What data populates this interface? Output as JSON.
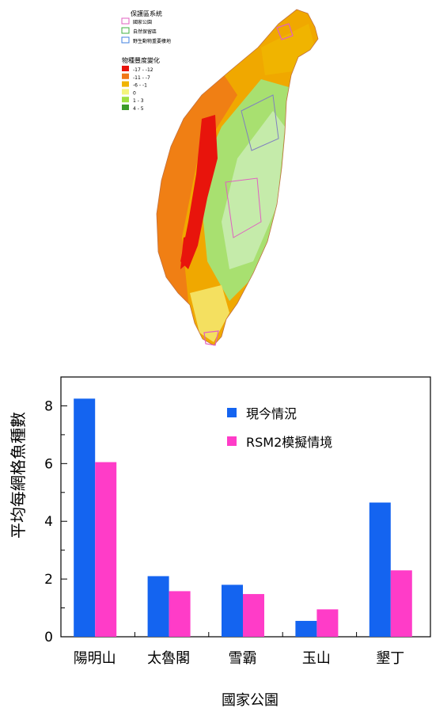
{
  "map": {
    "legend_protected_title": "保護區系統",
    "protected_items": [
      {
        "label": "國家公園",
        "color": "#e060c0"
      },
      {
        "label": "自然保留區",
        "color": "#40b040"
      },
      {
        "label": "野生動物重要棲地",
        "color": "#4080e0"
      }
    ],
    "legend_change_title": "物種豐度變化",
    "change_items": [
      {
        "label": "-17 - -12",
        "color": "#e8140c"
      },
      {
        "label": "-11 - -7",
        "color": "#f07818"
      },
      {
        "label": "-6 - -1",
        "color": "#f0b400"
      },
      {
        "label": "0",
        "color": "#f4f47c"
      },
      {
        "label": "1 - 3",
        "color": "#a0e040"
      },
      {
        "label": "4 - 5",
        "color": "#3c9c28"
      }
    ]
  },
  "chart_data": {
    "type": "bar",
    "categories": [
      "陽明山",
      "太魯閣",
      "雪霸",
      "玉山",
      "墾丁"
    ],
    "series": [
      {
        "name": "現今情況",
        "color": "#1464f0",
        "values": [
          8.25,
          2.1,
          1.8,
          0.55,
          4.65
        ]
      },
      {
        "name": "RSM2模擬情境",
        "color": "#ff3cc8",
        "values": [
          6.05,
          1.58,
          1.48,
          0.95,
          2.3
        ]
      }
    ],
    "ylabel": "平均每網格魚種數",
    "xlabel": "國家公園",
    "ylim": [
      0,
      9
    ],
    "yticks": [
      0,
      2,
      4,
      6,
      8
    ],
    "legend_position": "top-right",
    "grid": false
  }
}
